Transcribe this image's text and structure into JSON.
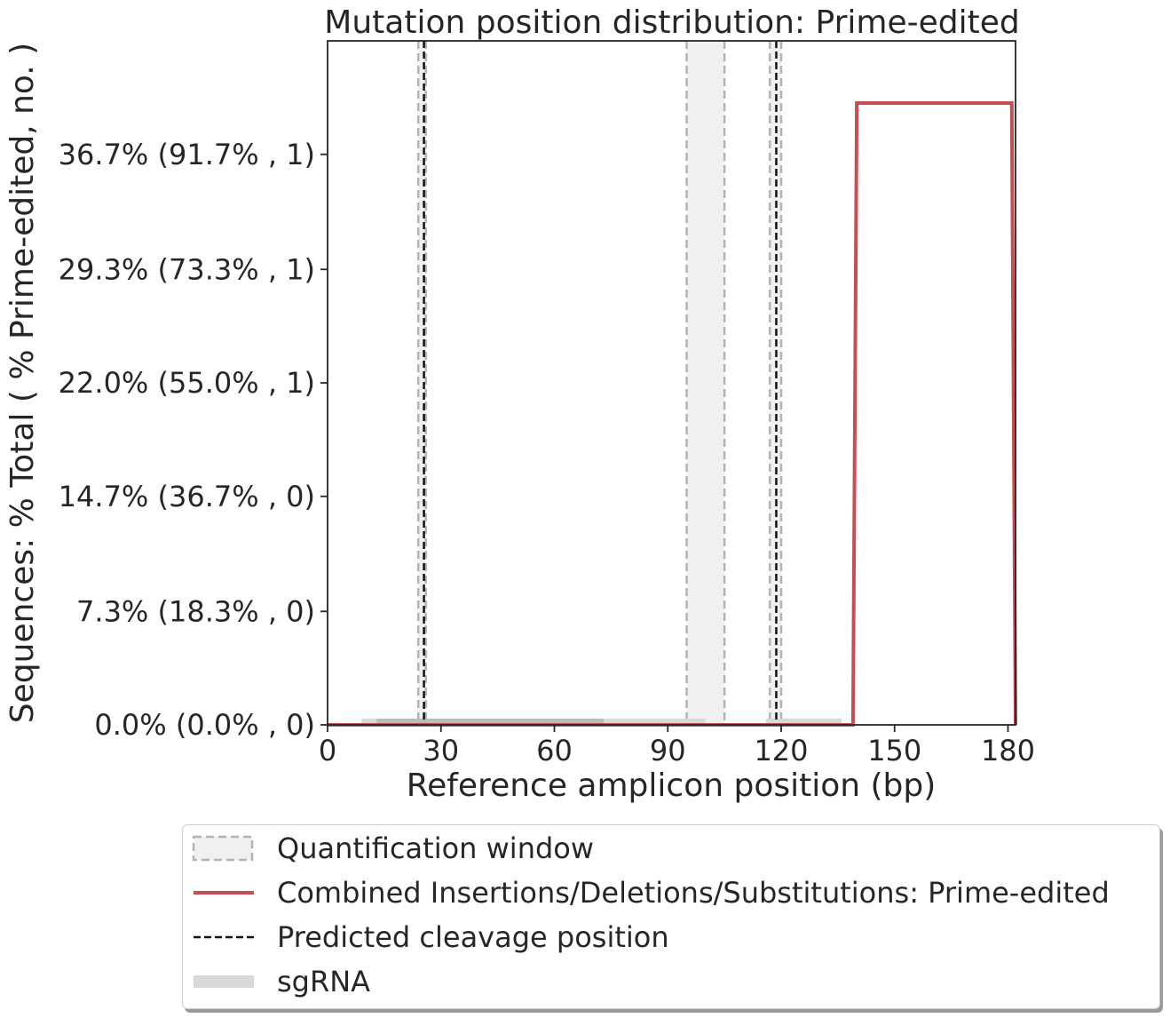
{
  "chart_data": {
    "type": "line",
    "title": "Mutation position distribution: Prime-edited",
    "xlabel": "Reference amplicon position (bp)",
    "ylabel": "Sequences: % Total ( % Prime-edited, no. )",
    "xlim": [
      0,
      182
    ],
    "ylim": [
      0,
      44
    ],
    "x_ticks": [
      0,
      30,
      60,
      90,
      120,
      150,
      180
    ],
    "y_ticks": [
      {
        "value": 0.0,
        "label": "0.0% (0.0% , 0)"
      },
      {
        "value": 7.3,
        "label": "7.3% (18.3% , 0)"
      },
      {
        "value": 14.7,
        "label": "14.7% (36.7% , 0)"
      },
      {
        "value": 22.0,
        "label": "22.0% (55.0% , 1)"
      },
      {
        "value": 29.3,
        "label": "29.3% (73.3% , 1)"
      },
      {
        "value": 36.7,
        "label": "36.7% (91.7% , 1)"
      }
    ],
    "series": [
      {
        "name": "Combined Insertions/Deletions/Substitutions: Prime-edited",
        "color": "#c44e52",
        "x": [
          0,
          139,
          140,
          181,
          182
        ],
        "y": [
          0,
          0,
          40,
          40,
          0
        ]
      }
    ],
    "quantification_windows": [
      [
        24,
        26
      ],
      [
        95,
        105
      ],
      [
        117,
        120
      ]
    ],
    "cleavage_positions": [
      25.5,
      118.7
    ],
    "sgrnas": [
      {
        "start": 9,
        "end": 100,
        "shade": "#d9d9d9"
      },
      {
        "start": 13,
        "end": 73,
        "shade": "#bbbbbb"
      },
      {
        "start": 116,
        "end": 136,
        "shade": "#d9d9d9"
      }
    ],
    "legend": {
      "placement": "bottom",
      "entries": [
        {
          "label": "Quantification window",
          "kind": "window"
        },
        {
          "label": "Combined Insertions/Deletions/Substitutions: Prime-edited",
          "kind": "line"
        },
        {
          "label": "Predicted cleavage position",
          "kind": "dashed"
        },
        {
          "label": "sgRNA",
          "kind": "sgrna"
        }
      ]
    },
    "grid": false
  }
}
